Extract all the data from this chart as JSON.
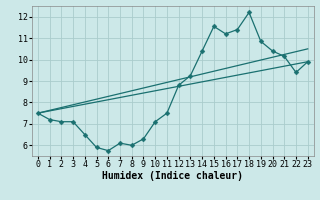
{
  "xlabel": "Humidex (Indice chaleur)",
  "background_color": "#cce8e8",
  "grid_color": "#aacccc",
  "line_color": "#1a7070",
  "xlim": [
    -0.5,
    23.5
  ],
  "ylim": [
    5.5,
    12.5
  ],
  "xticks": [
    0,
    1,
    2,
    3,
    4,
    5,
    6,
    7,
    8,
    9,
    10,
    11,
    12,
    13,
    14,
    15,
    16,
    17,
    18,
    19,
    20,
    21,
    22,
    23
  ],
  "yticks": [
    6,
    7,
    8,
    9,
    10,
    11,
    12
  ],
  "series1_x": [
    0,
    1,
    2,
    3,
    4,
    5,
    6,
    7,
    8,
    9,
    10,
    11,
    12,
    13,
    14,
    15,
    16,
    17,
    18,
    19,
    20,
    21,
    22,
    23
  ],
  "series1_y": [
    7.5,
    7.2,
    7.1,
    7.1,
    6.5,
    5.9,
    5.75,
    6.1,
    6.0,
    6.3,
    7.1,
    7.5,
    8.8,
    9.25,
    10.4,
    11.55,
    11.2,
    11.4,
    12.2,
    10.85,
    10.4,
    10.15,
    9.4,
    9.9
  ],
  "series2_x": [
    0,
    23
  ],
  "series2_y": [
    7.5,
    9.9
  ],
  "series3_x": [
    0,
    23
  ],
  "series3_y": [
    7.5,
    10.5
  ],
  "tick_fontsize": 6,
  "xlabel_fontsize": 7
}
